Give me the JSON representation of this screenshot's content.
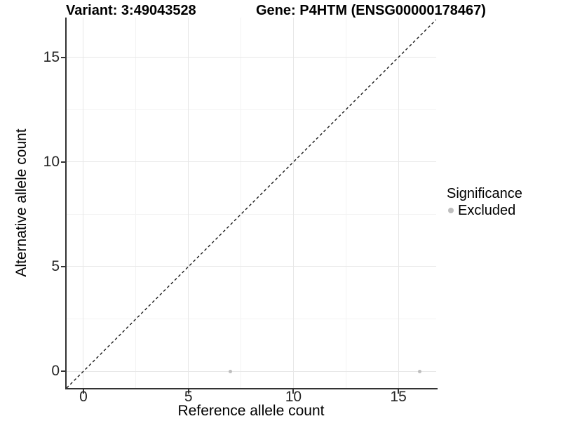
{
  "titles": {
    "variant": "Variant: 3:49043528",
    "gene": "Gene: P4HTM (ENSG00000178467)"
  },
  "axes": {
    "x": {
      "label": "Reference allele count",
      "ticks": [
        "0",
        "5",
        "10",
        "15"
      ]
    },
    "y": {
      "label": "Alternative allele count",
      "ticks": [
        "0",
        "5",
        "10",
        "15"
      ]
    }
  },
  "legend": {
    "title": "Significance",
    "items": [
      {
        "label": "Excluded",
        "color": "#BEBEBE"
      }
    ]
  },
  "chart_data": {
    "type": "scatter",
    "title": "Variant: 3:49043528   Gene: P4HTM (ENSG00000178467)",
    "xlabel": "Reference allele count",
    "ylabel": "Alternative allele count",
    "xlim": [
      -0.8,
      16.8
    ],
    "ylim": [
      -0.8,
      16.9
    ],
    "x_major_ticks": [
      0,
      5,
      10,
      15
    ],
    "y_major_ticks": [
      0,
      5,
      10,
      15
    ],
    "x_minor_ticks": [
      2.5,
      7.5,
      12.5
    ],
    "y_minor_ticks": [
      2.5,
      7.5,
      12.5
    ],
    "grid": "major+minor",
    "legend_position": "right",
    "reference_line": {
      "type": "identity y=x",
      "style": "dashed",
      "color": "#1A1A1A"
    },
    "series": [
      {
        "name": "Excluded",
        "color": "#BEBEBE",
        "points": [
          {
            "x": 7,
            "y": 0
          },
          {
            "x": 16,
            "y": 0
          }
        ]
      }
    ]
  },
  "colors": {
    "background": "#FFFFFF",
    "point_excluded": "#BEBEBE",
    "grid_major": "#E7E7E7",
    "grid_minor": "#F3F3F3",
    "axis": "#333333",
    "dashed_line": "#1A1A1A",
    "text": "#000000"
  }
}
